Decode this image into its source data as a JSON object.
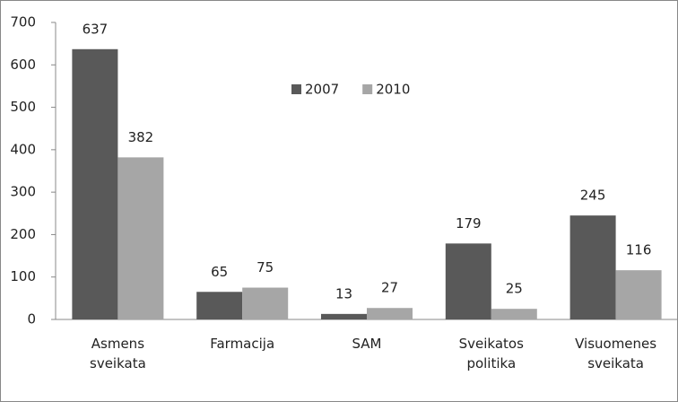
{
  "chart_data": {
    "type": "bar",
    "categories": [
      "Asmens sveikata",
      "Farmacija",
      "SAM",
      "Sveikatos politika",
      "Visuomenes sveikata"
    ],
    "series": [
      {
        "name": "2007",
        "color": "#595959",
        "values": [
          637,
          65,
          13,
          179,
          245
        ]
      },
      {
        "name": "2010",
        "color": "#a6a6a6",
        "values": [
          382,
          75,
          27,
          25,
          116
        ]
      }
    ],
    "ylim": [
      0,
      700
    ],
    "yticks": [
      0,
      100,
      200,
      300,
      400,
      500,
      600,
      700
    ],
    "grid": false
  }
}
